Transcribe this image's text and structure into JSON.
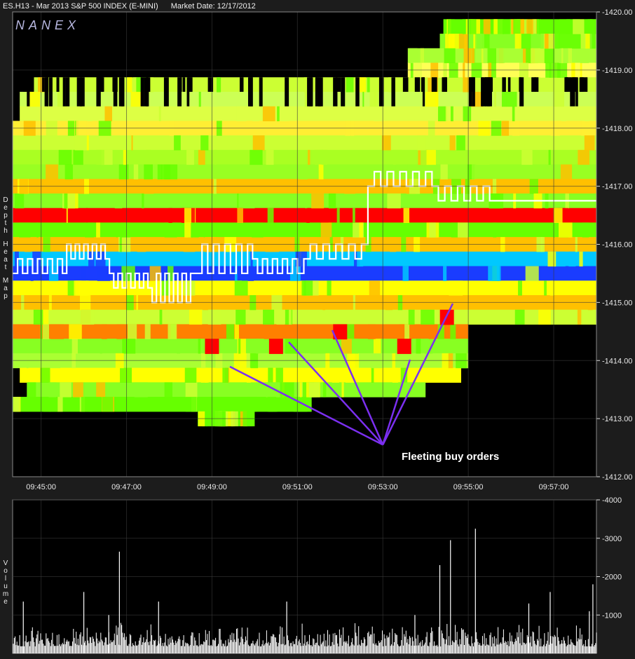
{
  "header": {
    "symbol": "ES.H13 - Mar 2013 S&P 500 INDEX (E-MINI)",
    "market_date": "Market Date: 12/17/2012"
  },
  "brand": "NANEX",
  "annotation": "Fleeting buy orders",
  "side_labels": {
    "top_words": [
      "Depth",
      "Heat",
      "Map"
    ],
    "bottom_word": "Volume"
  },
  "colors": {
    "background": "#000000",
    "frame": "#1c1c1c",
    "grid": "#3a3a3a",
    "annotation_lines": "#7b2ff0",
    "heat_scale": [
      "#1a3cff",
      "#00c8ff",
      "#66ff00",
      "#ccff33",
      "#ffff00",
      "#ffc000",
      "#ff8000",
      "#ff0000"
    ]
  },
  "chart_data": [
    {
      "type": "heatmap",
      "title": "Depth Heat Map",
      "ylim": [
        1412.0,
        1420.0
      ],
      "yticks": [
        "1412.00",
        "1413.00",
        "1414.00",
        "1415.00",
        "1416.00",
        "1417.00",
        "1418.00",
        "1419.00",
        "1420.00"
      ],
      "xticks": [
        "09:45:00",
        "09:47:00",
        "09:49:00",
        "09:51:00",
        "09:53:00",
        "09:55:00",
        "09:57:00"
      ],
      "grid": true,
      "bands": [
        {
          "price": 1419.75,
          "start": "09:54:25",
          "end": "09:58:00",
          "color": "#66ff00"
        },
        {
          "price": 1419.5,
          "start": "09:54:20",
          "end": "09:58:00",
          "color": "#88ff22"
        },
        {
          "price": 1419.25,
          "start": "09:53:35",
          "end": "09:58:00",
          "color": "#aaff33"
        },
        {
          "price": 1419.0,
          "start": "09:53:35",
          "end": "09:58:00",
          "color": "#ffff55"
        },
        {
          "price": 1418.75,
          "start": "09:44:50",
          "end": "09:58:00",
          "color": "#ccff33"
        },
        {
          "price": 1418.5,
          "start": "09:44:30",
          "end": "09:58:00",
          "color": "#ccff55"
        },
        {
          "price": 1418.25,
          "start": "09:44:30",
          "end": "09:58:00",
          "color": "#ddff44"
        },
        {
          "price": 1418.0,
          "start": "09:44:20",
          "end": "09:58:00",
          "color": "#ffee33"
        },
        {
          "price": 1417.75,
          "start": "09:44:20",
          "end": "09:58:00",
          "color": "#ccff33"
        },
        {
          "price": 1417.5,
          "start": "09:44:20",
          "end": "09:58:00",
          "color": "#aaff22"
        },
        {
          "price": 1417.25,
          "start": "09:44:20",
          "end": "09:58:00",
          "color": "#99ff22"
        },
        {
          "price": 1417.0,
          "start": "09:44:20",
          "end": "09:58:00",
          "color": "#ffc000"
        },
        {
          "price": 1416.75,
          "start": "09:44:20",
          "end": "09:58:00",
          "color": "#88ff22"
        },
        {
          "price": 1416.5,
          "start": "09:44:20",
          "end": "09:58:00",
          "color": "#ff0000"
        },
        {
          "price": 1416.25,
          "start": "09:44:20",
          "end": "09:58:00",
          "color": "#66ff00"
        },
        {
          "price": 1416.0,
          "start": "09:44:20",
          "end": "09:58:00",
          "color": "#ffc000"
        },
        {
          "price": 1415.75,
          "start": "09:44:20",
          "end": "09:58:00",
          "color": "#00c8ff"
        },
        {
          "price": 1415.5,
          "start": "09:44:20",
          "end": "09:58:00",
          "color": "#1a3cff"
        },
        {
          "price": 1415.25,
          "start": "09:44:20",
          "end": "09:58:00",
          "color": "#ffff00"
        },
        {
          "price": 1415.0,
          "start": "09:44:20",
          "end": "09:58:00",
          "color": "#ffc000"
        },
        {
          "price": 1414.75,
          "start": "09:44:20",
          "end": "09:58:00",
          "color": "#ccff33"
        },
        {
          "price": 1414.5,
          "start": "09:44:20",
          "end": "09:55:00",
          "color": "#ff8000"
        },
        {
          "price": 1414.25,
          "start": "09:44:20",
          "end": "09:55:00",
          "color": "#88ff22"
        },
        {
          "price": 1414.0,
          "start": "09:44:20",
          "end": "09:55:00",
          "color": "#aaff33"
        },
        {
          "price": 1413.75,
          "start": "09:44:30",
          "end": "09:54:50",
          "color": "#ffff00"
        },
        {
          "price": 1413.5,
          "start": "09:44:40",
          "end": "09:54:00",
          "color": "#88ff22"
        },
        {
          "price": 1413.25,
          "start": "09:44:20",
          "end": "09:51:20",
          "color": "#66ff00"
        },
        {
          "price": 1413.0,
          "start": "09:48:40",
          "end": "09:50:00",
          "color": "#66ff00"
        }
      ],
      "fleeting_orders": [
        {
          "time": "09:49:00",
          "price": 1414.25
        },
        {
          "time": "09:50:30",
          "price": 1414.25
        },
        {
          "time": "09:52:00",
          "price": 1414.5
        },
        {
          "time": "09:53:30",
          "price": 1414.25
        },
        {
          "time": "09:54:30",
          "price": 1414.75
        }
      ],
      "annotation_origin": {
        "time": "09:53:00",
        "price": 1412.55
      }
    },
    {
      "type": "bar",
      "title": "Volume",
      "ylim": [
        0,
        4000
      ],
      "yticks": [
        "1000",
        "2000",
        "3000",
        "4000"
      ],
      "xticks": [
        "09:45:00",
        "09:47:00",
        "09:49:00",
        "09:51:00",
        "09:53:00",
        "09:55:00",
        "09:57:00"
      ],
      "spikes": [
        {
          "time": "09:44:35",
          "value": 1350
        },
        {
          "time": "09:46:00",
          "value": 1600
        },
        {
          "time": "09:46:35",
          "value": 1000
        },
        {
          "time": "09:46:50",
          "value": 2650
        },
        {
          "time": "09:47:45",
          "value": 1350
        },
        {
          "time": "09:50:45",
          "value": 1350
        },
        {
          "time": "09:53:45",
          "value": 1000
        },
        {
          "time": "09:54:20",
          "value": 2300
        },
        {
          "time": "09:54:35",
          "value": 2950
        },
        {
          "time": "09:55:10",
          "value": 3250
        },
        {
          "time": "09:56:25",
          "value": 1300
        },
        {
          "time": "09:56:55",
          "value": 1600
        },
        {
          "time": "09:57:50",
          "value": 1100
        },
        {
          "time": "09:57:55",
          "value": 1800
        }
      ],
      "baseline": 180,
      "noise_max": 650
    }
  ]
}
